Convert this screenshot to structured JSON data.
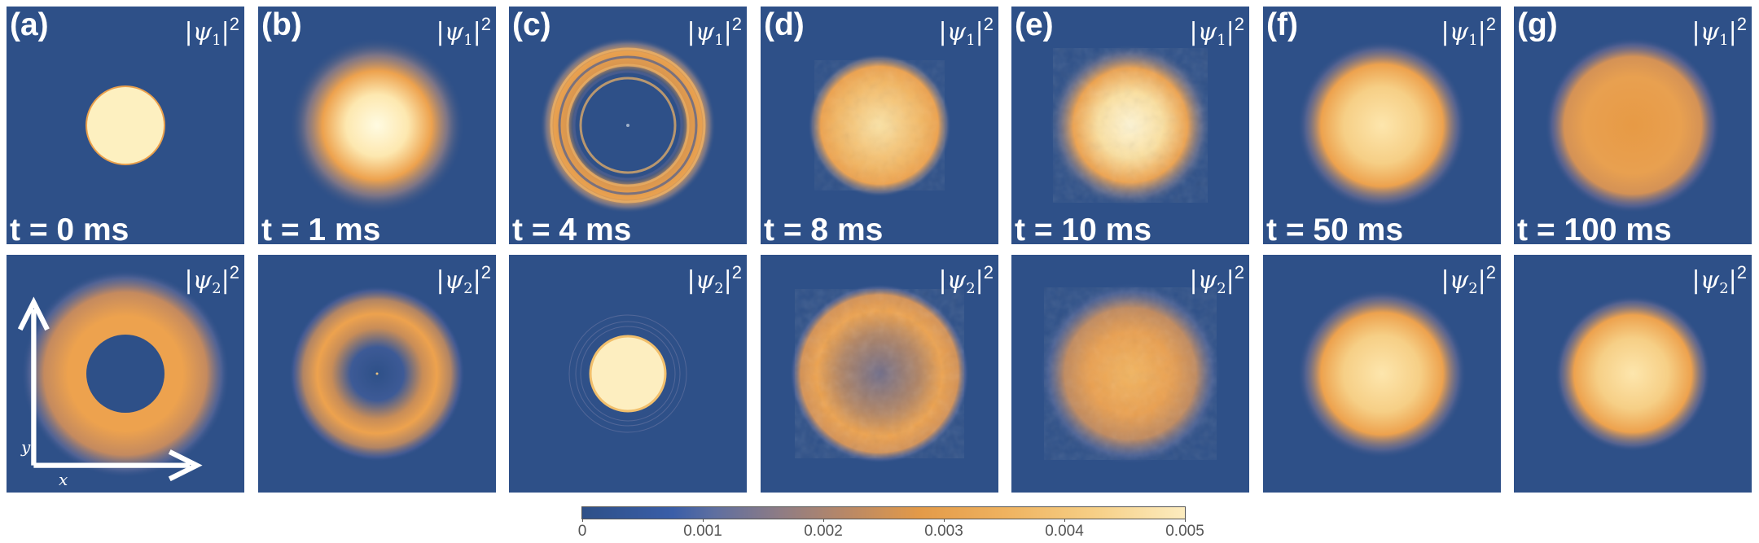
{
  "figure": {
    "columns": [
      {
        "label": "(a)",
        "time": "t = 0 ms"
      },
      {
        "label": "(b)",
        "time": "t = 1 ms"
      },
      {
        "label": "(c)",
        "time": "t = 4 ms"
      },
      {
        "label": "(d)",
        "time": "t = 8 ms"
      },
      {
        "label": "(e)",
        "time": "t = 10 ms"
      },
      {
        "label": "(f)",
        "time": "t = 50 ms"
      },
      {
        "label": "(g)",
        "time": "t = 100 ms"
      }
    ],
    "rows": [
      {
        "psi_symbol": "ψ",
        "psi_index": "1",
        "exponent": "2"
      },
      {
        "psi_symbol": "ψ",
        "psi_index": "2",
        "exponent": "2"
      }
    ],
    "axes": {
      "x": "x",
      "y": "y"
    },
    "colorbar": {
      "ticks": [
        "0",
        "0.001",
        "0.002",
        "0.003",
        "0.004",
        "0.005"
      ],
      "colors": [
        "#2e5088",
        "#5f6fa0",
        "#b98866",
        "#e39a48",
        "#f6cf86",
        "#fcecbf"
      ]
    },
    "colors": {
      "background": "#2e5088",
      "orange": "#eda24e",
      "cream": "#fdf0c0",
      "light": "#fff8d8"
    }
  }
}
